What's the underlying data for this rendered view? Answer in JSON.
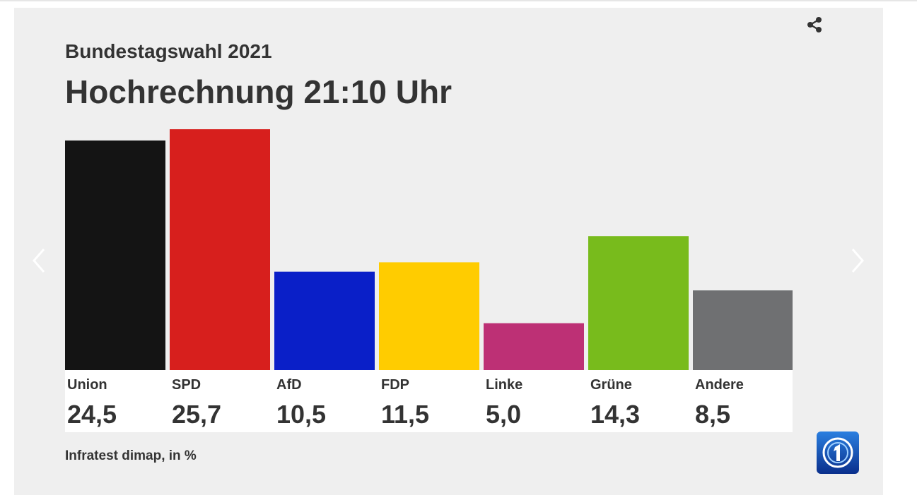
{
  "header": {
    "subtitle": "Bundestagswahl 2021",
    "title": "Hochrechnung 21:10 Uhr"
  },
  "footer": {
    "source": "Infratest dimap, in %"
  },
  "icons": {
    "share": "share-icon",
    "prev": "chevron-left-icon",
    "next": "chevron-right-icon",
    "logo": "tagesschau-logo"
  },
  "chart_data": {
    "type": "bar",
    "title": "Hochrechnung 21:10 Uhr",
    "xlabel": "",
    "ylabel": "",
    "ylim": [
      0,
      25.7
    ],
    "grid": false,
    "legend": "none",
    "categories": [
      "Union",
      "SPD",
      "AfD",
      "FDP",
      "Linke",
      "Grüne",
      "Andere"
    ],
    "values": [
      24.5,
      25.7,
      10.5,
      11.5,
      5.0,
      14.3,
      8.5
    ],
    "value_labels": [
      "24,5",
      "25,7",
      "10,5",
      "11,5",
      "5,0",
      "14,3",
      "8,5"
    ],
    "colors": [
      "#141414",
      "#d71f1d",
      "#0a1fc8",
      "#ffcc00",
      "#bd3075",
      "#78bb1c",
      "#6f7072"
    ]
  }
}
